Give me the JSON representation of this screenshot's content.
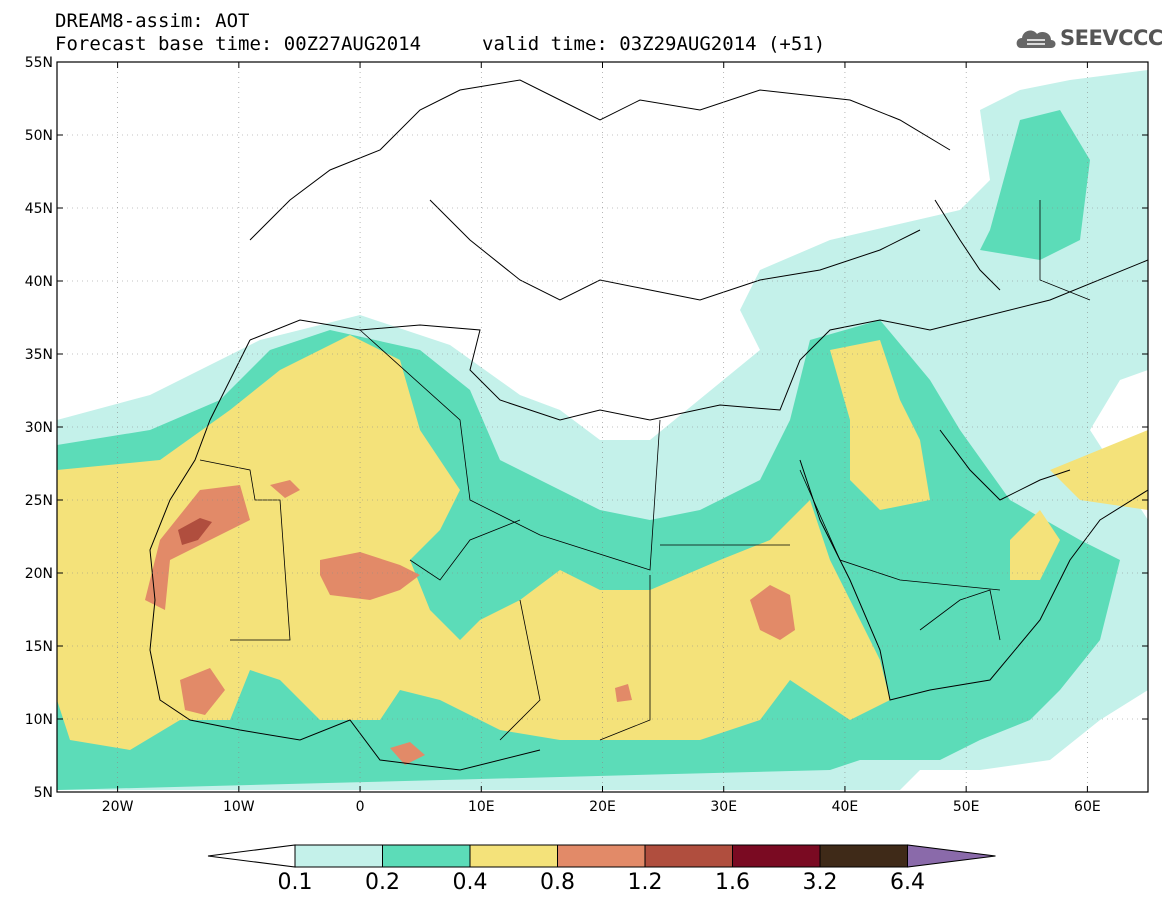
{
  "header": {
    "line1": "DREAM8-assim: AOT",
    "line2": "Forecast base time: 00Z27AUG2014",
    "line3": "valid time: 03Z29AUG2014 (+51)",
    "logo_text": "SEEVCCC"
  },
  "map": {
    "lon_range": [
      -25,
      65
    ],
    "lat_range": [
      5,
      55
    ],
    "lon_ticks": [
      {
        "lon": -20,
        "label": "20W"
      },
      {
        "lon": -10,
        "label": "10W"
      },
      {
        "lon": 0,
        "label": "0"
      },
      {
        "lon": 10,
        "label": "10E"
      },
      {
        "lon": 20,
        "label": "20E"
      },
      {
        "lon": 30,
        "label": "30E"
      },
      {
        "lon": 40,
        "label": "40E"
      },
      {
        "lon": 50,
        "label": "50E"
      },
      {
        "lon": 60,
        "label": "60E"
      }
    ],
    "lat_ticks": [
      {
        "lat": 5,
        "label": "5N"
      },
      {
        "lat": 10,
        "label": "10N"
      },
      {
        "lat": 15,
        "label": "15N"
      },
      {
        "lat": 20,
        "label": "20N"
      },
      {
        "lat": 25,
        "label": "25N"
      },
      {
        "lat": 30,
        "label": "30N"
      },
      {
        "lat": 35,
        "label": "35N"
      },
      {
        "lat": 40,
        "label": "40N"
      },
      {
        "lat": 45,
        "label": "45N"
      },
      {
        "lat": 50,
        "label": "50N"
      },
      {
        "lat": 55,
        "label": "55N"
      }
    ]
  },
  "colorbar": {
    "labels": [
      "0.1",
      "0.2",
      "0.4",
      "0.8",
      "1.2",
      "1.6",
      "3.2",
      "6.4"
    ],
    "colors": [
      "#ffffff",
      "#c4f1ea",
      "#5cdcb8",
      "#f4e27a",
      "#e28a68",
      "#b04e3e",
      "#7a0a22",
      "#3f2a18",
      "#8a6aaa"
    ]
  },
  "levels": {
    "l1": "#c4f1ea",
    "l2": "#5cdcb8",
    "l3": "#f4e27a",
    "l4": "#e28a68",
    "l5": "#b04e3e"
  }
}
